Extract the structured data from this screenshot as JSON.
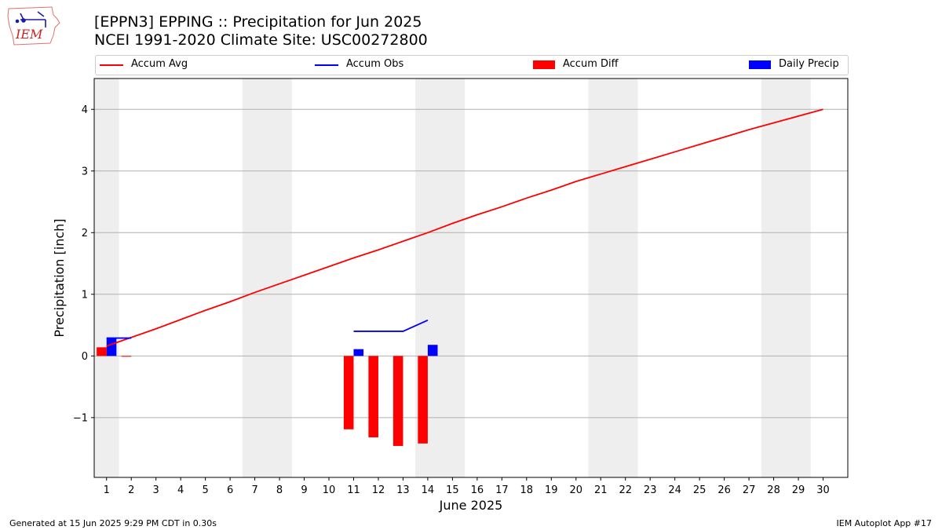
{
  "header": {
    "logo_text": "IEM",
    "title_line1": "[EPPN3] EPPING :: Precipitation for Jun 2025",
    "title_line2": "NCEI 1991-2020 Climate Site: USC00272800"
  },
  "legend": {
    "accum_avg": "Accum Avg",
    "accum_obs": "Accum Obs",
    "accum_diff": "Accum Diff",
    "daily_precip": "Daily Precip"
  },
  "colors": {
    "accum_avg": "#ff0000",
    "accum_obs": "#0000ff",
    "accum_diff": "#ff0000",
    "daily_precip": "#0000ff",
    "weekend_shade": "#eeeeee",
    "grid": "#b0b0b0"
  },
  "footer": {
    "left": "Generated at 15 Jun 2025 9:29 PM CDT in 0.30s",
    "right": "IEM Autoplot App #17"
  },
  "chart_data": {
    "type": "bar",
    "title": "[EPPN3] EPPING :: Precipitation for Jun 2025",
    "subtitle": "NCEI 1991-2020 Climate Site: USC00272800",
    "xlabel": "June 2025",
    "ylabel": "Precipitation [inch]",
    "xlim": [
      0.5,
      31.0
    ],
    "ylim": [
      -1.97,
      4.5
    ],
    "yticks": [
      -1,
      0,
      1,
      2,
      3,
      4
    ],
    "ytick_labels": [
      "−1",
      "0",
      "1",
      "2",
      "3",
      "4"
    ],
    "xticks": [
      1,
      2,
      3,
      4,
      5,
      6,
      7,
      8,
      9,
      10,
      11,
      12,
      13,
      14,
      15,
      16,
      17,
      18,
      19,
      20,
      21,
      22,
      23,
      24,
      25,
      26,
      27,
      28,
      29,
      30
    ],
    "grid": "y-major",
    "legend_position": "top",
    "weekend_ranges": [
      [
        0.5,
        1.5
      ],
      [
        6.5,
        8.5
      ],
      [
        13.5,
        15.5
      ],
      [
        20.5,
        22.5
      ],
      [
        27.5,
        29.5
      ]
    ],
    "series": [
      {
        "name": "Accum Avg",
        "type": "line",
        "x": [
          1,
          2,
          3,
          4,
          5,
          6,
          7,
          8,
          9,
          10,
          11,
          12,
          13,
          14,
          15,
          16,
          17,
          18,
          19,
          20,
          21,
          22,
          23,
          24,
          25,
          26,
          27,
          28,
          29,
          30
        ],
        "values": [
          0.16,
          0.3,
          0.44,
          0.59,
          0.74,
          0.88,
          1.03,
          1.17,
          1.31,
          1.45,
          1.59,
          1.72,
          1.86,
          2.0,
          2.15,
          2.29,
          2.42,
          2.56,
          2.69,
          2.83,
          2.95,
          3.07,
          3.19,
          3.31,
          3.43,
          3.55,
          3.67,
          3.78,
          3.89,
          4.0
        ]
      },
      {
        "name": "Accum Obs",
        "type": "line",
        "segments": [
          {
            "x": [
              1,
              2
            ],
            "values": [
              0.29,
              0.29
            ]
          },
          {
            "x": [
              11,
              12,
              13,
              14
            ],
            "values": [
              0.4,
              0.4,
              0.4,
              0.58
            ]
          }
        ]
      },
      {
        "name": "Accum Diff",
        "type": "bar",
        "x": [
          1,
          2,
          11,
          12,
          13,
          14
        ],
        "values": [
          0.14,
          -0.01,
          -1.19,
          -1.32,
          -1.46,
          -1.42
        ]
      },
      {
        "name": "Daily Precip",
        "type": "bar",
        "x": [
          1,
          11,
          14
        ],
        "values": [
          0.29,
          0.11,
          0.18
        ]
      }
    ]
  }
}
